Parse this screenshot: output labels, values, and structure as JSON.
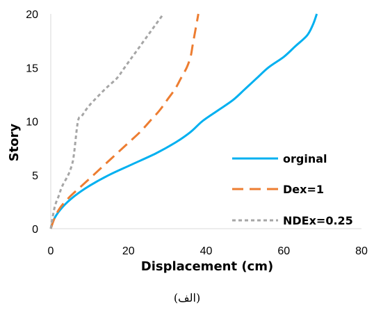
{
  "chart_data": {
    "type": "line",
    "xlabel": "Displacement (cm)",
    "ylabel": "Story",
    "xlim": [
      0,
      80
    ],
    "ylim": [
      0,
      20
    ],
    "xticks": [
      "0",
      "20",
      "40",
      "60",
      "80"
    ],
    "yticks": [
      "0",
      "5",
      "10",
      "15",
      "20"
    ],
    "grid": false,
    "legend_position": "bottom-right",
    "caption": "(الف)",
    "series": [
      {
        "name": "orginal",
        "color": "#00B0F0",
        "style": "solid",
        "points": [
          [
            0,
            0
          ],
          [
            1,
            1
          ],
          [
            3,
            2
          ],
          [
            6,
            3
          ],
          [
            10,
            4
          ],
          [
            15,
            5
          ],
          [
            21,
            6
          ],
          [
            27,
            7
          ],
          [
            32,
            8
          ],
          [
            36,
            9
          ],
          [
            39,
            10
          ],
          [
            43,
            11
          ],
          [
            47,
            12
          ],
          [
            50,
            13
          ],
          [
            53,
            14
          ],
          [
            56,
            15
          ],
          [
            60,
            16
          ],
          [
            63,
            17
          ],
          [
            66,
            18
          ],
          [
            67.5,
            19
          ],
          [
            68.5,
            20
          ]
        ]
      },
      {
        "name": "Dex=1",
        "color": "#ED7D31",
        "style": "dash",
        "points": [
          [
            0,
            0
          ],
          [
            1,
            1
          ],
          [
            2.5,
            2
          ],
          [
            5,
            3
          ],
          [
            8,
            4
          ],
          [
            11,
            5
          ],
          [
            14,
            6
          ],
          [
            17,
            7
          ],
          [
            20,
            8
          ],
          [
            23,
            9
          ],
          [
            25.5,
            10
          ],
          [
            28,
            11
          ],
          [
            30,
            12
          ],
          [
            32,
            13
          ],
          [
            33.5,
            14
          ],
          [
            35,
            15
          ],
          [
            36,
            16
          ],
          [
            36.5,
            17
          ],
          [
            37,
            18
          ],
          [
            37.5,
            19
          ],
          [
            38,
            20
          ]
        ]
      },
      {
        "name": "NDEx=0.25",
        "color": "#A6A6A6",
        "style": "dot",
        "points": [
          [
            0,
            0
          ],
          [
            1,
            2
          ],
          [
            2,
            3
          ],
          [
            3,
            4
          ],
          [
            4.5,
            5
          ],
          [
            5.5,
            6
          ],
          [
            6,
            7
          ],
          [
            7,
            10
          ],
          [
            8,
            10.5
          ],
          [
            10,
            11.5
          ],
          [
            14,
            13
          ],
          [
            17,
            14
          ],
          [
            19,
            15
          ],
          [
            21,
            16
          ],
          [
            23,
            17
          ],
          [
            25,
            18
          ],
          [
            27,
            19
          ],
          [
            29,
            20
          ]
        ]
      }
    ]
  }
}
